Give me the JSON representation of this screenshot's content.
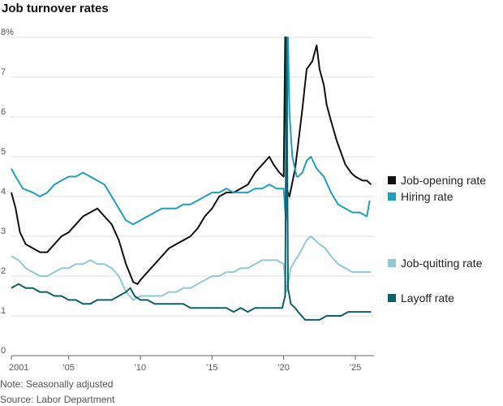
{
  "title": "Job turnover rates",
  "note": "Note: Seasonally adjusted",
  "source": "Source: Labor Department",
  "chart_data": {
    "type": "line",
    "title": "Job turnover rates",
    "xlabel": "",
    "ylabel": "",
    "xlim": [
      2001,
      2026.3
    ],
    "ylim": [
      0,
      8
    ],
    "grid": true,
    "legend_placement": "right",
    "x_ticks": [
      {
        "value": 2001,
        "label": "2001"
      },
      {
        "value": 2005,
        "label": "'05"
      },
      {
        "value": 2010,
        "label": "'10"
      },
      {
        "value": 2015,
        "label": "'15"
      },
      {
        "value": 2020,
        "label": "'20"
      },
      {
        "value": 2025,
        "label": "'25"
      }
    ],
    "y_ticks": [
      {
        "value": 0,
        "label": "0"
      },
      {
        "value": 1,
        "label": "1"
      },
      {
        "value": 2,
        "label": "2"
      },
      {
        "value": 3,
        "label": "3"
      },
      {
        "value": 4,
        "label": "4"
      },
      {
        "value": 5,
        "label": "5"
      },
      {
        "value": 6,
        "label": "6"
      },
      {
        "value": 7,
        "label": "7"
      },
      {
        "value": 8,
        "label": "8%"
      }
    ],
    "series": [
      {
        "name": "Job-opening rate",
        "color": "#111111",
        "points": [
          [
            2001,
            4.1
          ],
          [
            2001.3,
            3.7
          ],
          [
            2001.6,
            3.1
          ],
          [
            2002,
            2.8
          ],
          [
            2002.5,
            2.7
          ],
          [
            2003,
            2.6
          ],
          [
            2003.5,
            2.6
          ],
          [
            2004,
            2.8
          ],
          [
            2004.5,
            3.0
          ],
          [
            2005,
            3.1
          ],
          [
            2005.5,
            3.3
          ],
          [
            2006,
            3.5
          ],
          [
            2006.5,
            3.6
          ],
          [
            2007,
            3.7
          ],
          [
            2007.5,
            3.5
          ],
          [
            2008,
            3.3
          ],
          [
            2008.5,
            2.9
          ],
          [
            2009,
            2.3
          ],
          [
            2009.5,
            1.85
          ],
          [
            2009.8,
            1.8
          ],
          [
            2010,
            1.9
          ],
          [
            2010.5,
            2.1
          ],
          [
            2011,
            2.3
          ],
          [
            2011.5,
            2.5
          ],
          [
            2012,
            2.7
          ],
          [
            2012.5,
            2.8
          ],
          [
            2013,
            2.9
          ],
          [
            2013.5,
            3.0
          ],
          [
            2014,
            3.2
          ],
          [
            2014.5,
            3.5
          ],
          [
            2015,
            3.7
          ],
          [
            2015.5,
            4.0
          ],
          [
            2016,
            4.1
          ],
          [
            2016.5,
            4.1
          ],
          [
            2017,
            4.2
          ],
          [
            2017.5,
            4.3
          ],
          [
            2018,
            4.6
          ],
          [
            2018.5,
            4.8
          ],
          [
            2019,
            5.0
          ],
          [
            2019.3,
            4.8
          ],
          [
            2019.7,
            4.6
          ],
          [
            2020,
            4.5
          ],
          [
            2020.1,
            8.0
          ],
          [
            2020.2,
            4.2
          ],
          [
            2020.4,
            4.0
          ],
          [
            2020.8,
            4.7
          ],
          [
            2021,
            5.3
          ],
          [
            2021.3,
            6.2
          ],
          [
            2021.6,
            7.2
          ],
          [
            2022,
            7.4
          ],
          [
            2022.3,
            7.8
          ],
          [
            2022.5,
            7.2
          ],
          [
            2022.8,
            6.8
          ],
          [
            2023,
            6.3
          ],
          [
            2023.3,
            5.9
          ],
          [
            2023.7,
            5.4
          ],
          [
            2024,
            5.1
          ],
          [
            2024.3,
            4.8
          ],
          [
            2024.7,
            4.6
          ],
          [
            2025,
            4.5
          ],
          [
            2025.5,
            4.4
          ],
          [
            2025.8,
            4.4
          ],
          [
            2026.1,
            4.3
          ]
        ]
      },
      {
        "name": "Hiring rate",
        "color": "#1f9fbf",
        "points": [
          [
            2001,
            4.7
          ],
          [
            2001.3,
            4.5
          ],
          [
            2001.8,
            4.2
          ],
          [
            2002.5,
            4.1
          ],
          [
            2003,
            4.0
          ],
          [
            2003.5,
            4.1
          ],
          [
            2004,
            4.3
          ],
          [
            2004.5,
            4.4
          ],
          [
            2005,
            4.5
          ],
          [
            2005.5,
            4.5
          ],
          [
            2006,
            4.6
          ],
          [
            2006.5,
            4.5
          ],
          [
            2007,
            4.4
          ],
          [
            2007.5,
            4.3
          ],
          [
            2008,
            4.0
          ],
          [
            2008.5,
            3.7
          ],
          [
            2009,
            3.4
          ],
          [
            2009.5,
            3.3
          ],
          [
            2010,
            3.4
          ],
          [
            2010.5,
            3.5
          ],
          [
            2011,
            3.6
          ],
          [
            2011.5,
            3.7
          ],
          [
            2012,
            3.7
          ],
          [
            2012.5,
            3.7
          ],
          [
            2013,
            3.8
          ],
          [
            2013.5,
            3.8
          ],
          [
            2014,
            3.9
          ],
          [
            2014.5,
            4.0
          ],
          [
            2015,
            4.1
          ],
          [
            2015.5,
            4.1
          ],
          [
            2016,
            4.2
          ],
          [
            2016.5,
            4.1
          ],
          [
            2017,
            4.1
          ],
          [
            2017.5,
            4.1
          ],
          [
            2018,
            4.2
          ],
          [
            2018.5,
            4.2
          ],
          [
            2019,
            4.3
          ],
          [
            2019.5,
            4.2
          ],
          [
            2020,
            4.2
          ],
          [
            2020.15,
            3.4
          ],
          [
            2020.3,
            8.0
          ],
          [
            2020.4,
            6.1
          ],
          [
            2020.6,
            5.0
          ],
          [
            2020.9,
            4.5
          ],
          [
            2021,
            4.5
          ],
          [
            2021.3,
            4.6
          ],
          [
            2021.6,
            4.9
          ],
          [
            2021.9,
            5.0
          ],
          [
            2022.3,
            4.7
          ],
          [
            2022.8,
            4.5
          ],
          [
            2023.3,
            4.1
          ],
          [
            2023.8,
            3.8
          ],
          [
            2024.3,
            3.7
          ],
          [
            2024.8,
            3.6
          ],
          [
            2025.3,
            3.6
          ],
          [
            2025.8,
            3.5
          ],
          [
            2026,
            3.9
          ]
        ]
      },
      {
        "name": "Job-quitting rate",
        "color": "#8fc9d6",
        "points": [
          [
            2001,
            2.5
          ],
          [
            2001.5,
            2.4
          ],
          [
            2002,
            2.2
          ],
          [
            2002.5,
            2.1
          ],
          [
            2003,
            2.0
          ],
          [
            2003.5,
            2.0
          ],
          [
            2004,
            2.1
          ],
          [
            2004.5,
            2.2
          ],
          [
            2005,
            2.2
          ],
          [
            2005.5,
            2.3
          ],
          [
            2006,
            2.3
          ],
          [
            2006.5,
            2.4
          ],
          [
            2007,
            2.3
          ],
          [
            2007.5,
            2.3
          ],
          [
            2008,
            2.2
          ],
          [
            2008.5,
            2.0
          ],
          [
            2009,
            1.6
          ],
          [
            2009.5,
            1.4
          ],
          [
            2010,
            1.5
          ],
          [
            2010.5,
            1.5
          ],
          [
            2011,
            1.5
          ],
          [
            2011.5,
            1.5
          ],
          [
            2012,
            1.6
          ],
          [
            2012.5,
            1.6
          ],
          [
            2013,
            1.7
          ],
          [
            2013.5,
            1.7
          ],
          [
            2014,
            1.8
          ],
          [
            2014.5,
            1.9
          ],
          [
            2015,
            2.0
          ],
          [
            2015.5,
            2.0
          ],
          [
            2016,
            2.1
          ],
          [
            2016.5,
            2.1
          ],
          [
            2017,
            2.2
          ],
          [
            2017.5,
            2.2
          ],
          [
            2018,
            2.3
          ],
          [
            2018.5,
            2.4
          ],
          [
            2019,
            2.4
          ],
          [
            2019.5,
            2.4
          ],
          [
            2020,
            2.3
          ],
          [
            2020.2,
            1.6
          ],
          [
            2020.5,
            2.2
          ],
          [
            2020.8,
            2.4
          ],
          [
            2021,
            2.5
          ],
          [
            2021.3,
            2.7
          ],
          [
            2021.6,
            2.9
          ],
          [
            2021.9,
            3.0
          ],
          [
            2022.2,
            2.9
          ],
          [
            2022.5,
            2.8
          ],
          [
            2022.9,
            2.7
          ],
          [
            2023.3,
            2.5
          ],
          [
            2023.8,
            2.3
          ],
          [
            2024.3,
            2.2
          ],
          [
            2024.8,
            2.1
          ],
          [
            2025.3,
            2.1
          ],
          [
            2025.8,
            2.1
          ],
          [
            2026.1,
            2.1
          ]
        ]
      },
      {
        "name": "Layoff rate",
        "color": "#0c5f6b",
        "points": [
          [
            2001,
            1.7
          ],
          [
            2001.5,
            1.8
          ],
          [
            2002,
            1.7
          ],
          [
            2002.5,
            1.7
          ],
          [
            2003,
            1.6
          ],
          [
            2003.5,
            1.6
          ],
          [
            2004,
            1.5
          ],
          [
            2004.5,
            1.5
          ],
          [
            2005,
            1.4
          ],
          [
            2005.5,
            1.4
          ],
          [
            2006,
            1.3
          ],
          [
            2006.5,
            1.3
          ],
          [
            2007,
            1.4
          ],
          [
            2007.5,
            1.4
          ],
          [
            2008,
            1.4
          ],
          [
            2008.5,
            1.5
          ],
          [
            2009,
            1.6
          ],
          [
            2009.3,
            1.7
          ],
          [
            2009.6,
            1.5
          ],
          [
            2010,
            1.4
          ],
          [
            2010.5,
            1.4
          ],
          [
            2011,
            1.3
          ],
          [
            2011.5,
            1.3
          ],
          [
            2012,
            1.3
          ],
          [
            2012.5,
            1.3
          ],
          [
            2013,
            1.3
          ],
          [
            2013.5,
            1.2
          ],
          [
            2014,
            1.2
          ],
          [
            2014.5,
            1.2
          ],
          [
            2015,
            1.2
          ],
          [
            2015.5,
            1.2
          ],
          [
            2016,
            1.2
          ],
          [
            2016.5,
            1.1
          ],
          [
            2017,
            1.2
          ],
          [
            2017.5,
            1.1
          ],
          [
            2018,
            1.2
          ],
          [
            2018.5,
            1.2
          ],
          [
            2019,
            1.2
          ],
          [
            2019.5,
            1.2
          ],
          [
            2019.9,
            1.2
          ],
          [
            2020.1,
            1.5
          ],
          [
            2020.2,
            8.0
          ],
          [
            2020.3,
            1.7
          ],
          [
            2020.5,
            1.3
          ],
          [
            2020.8,
            1.2
          ],
          [
            2021,
            1.1
          ],
          [
            2021.5,
            0.9
          ],
          [
            2022,
            0.9
          ],
          [
            2022.5,
            0.9
          ],
          [
            2023,
            1.0
          ],
          [
            2023.5,
            1.0
          ],
          [
            2024,
            1.0
          ],
          [
            2024.5,
            1.1
          ],
          [
            2025,
            1.1
          ],
          [
            2025.5,
            1.1
          ],
          [
            2026.1,
            1.1
          ]
        ]
      }
    ]
  }
}
